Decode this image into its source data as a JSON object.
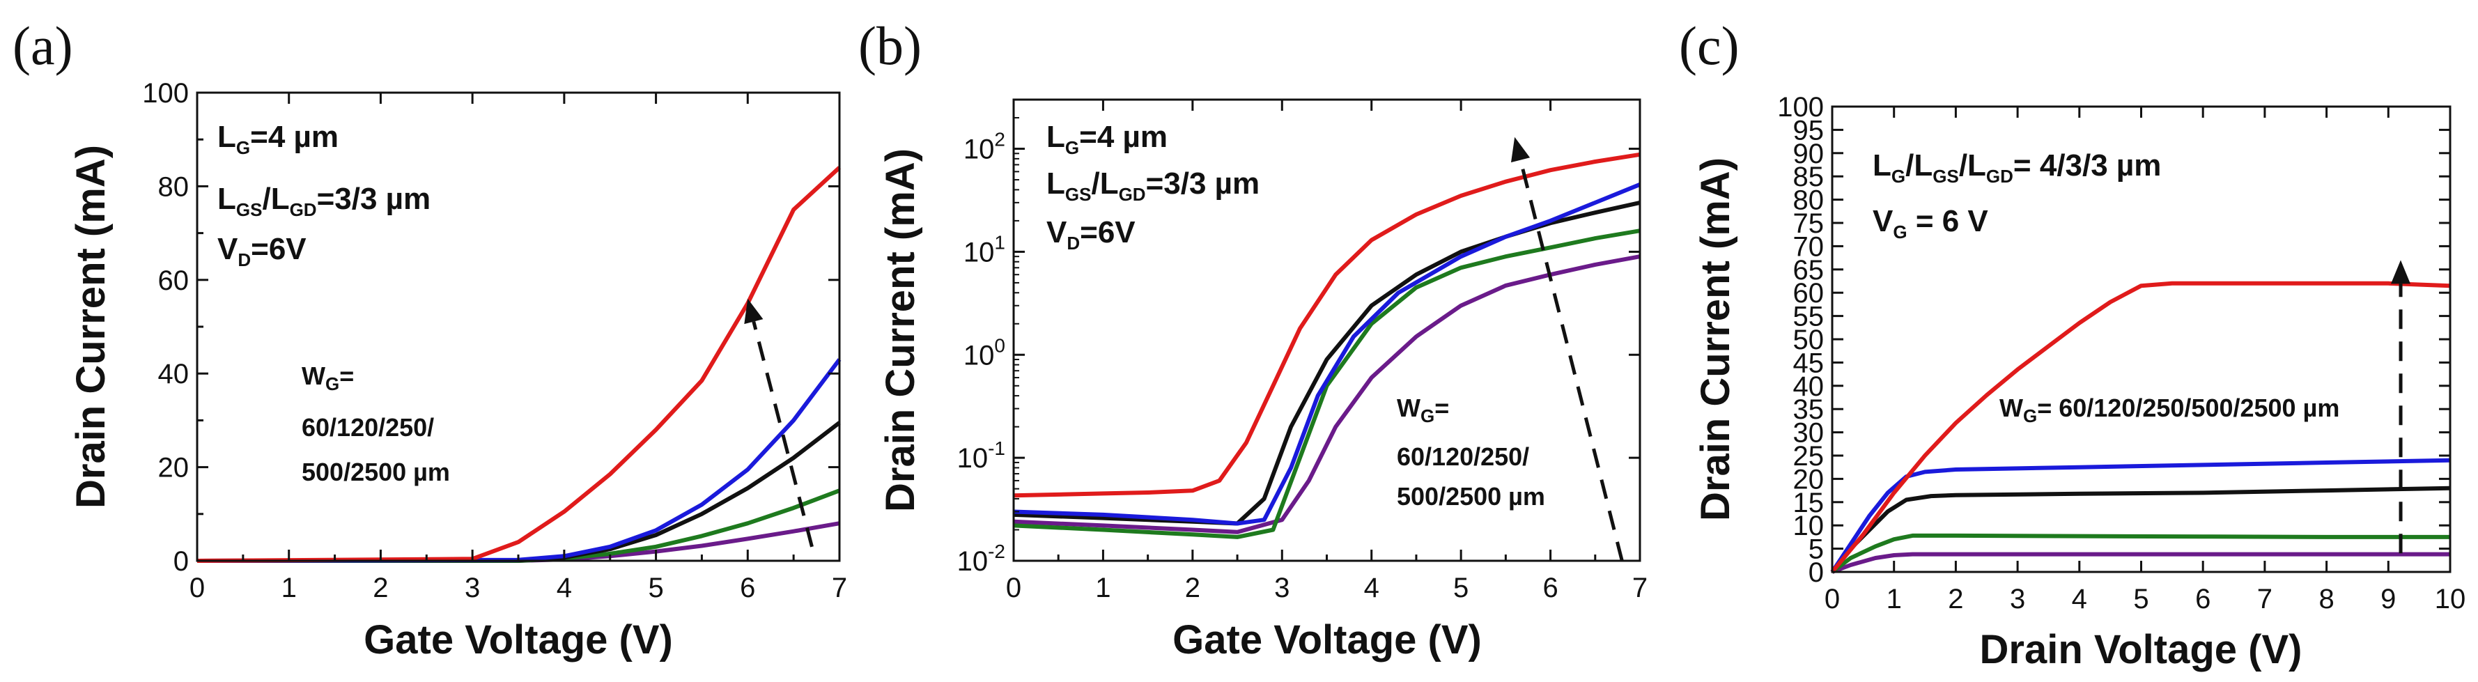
{
  "chart_data": [
    {
      "type": "line",
      "panel_label": "(a)",
      "xlabel": "Gate Voltage (V)",
      "ylabel": "Drain Current (mA)",
      "xlim": [
        0,
        7
      ],
      "ylim": [
        0,
        100
      ],
      "yscale": "linear",
      "x_ticks": [
        0,
        1,
        2,
        3,
        4,
        5,
        6,
        7
      ],
      "y_ticks": [
        0,
        20,
        40,
        60,
        80,
        100
      ],
      "annotations": {
        "lg": {
          "main": "L",
          "sub": "G",
          "rest": "=4 µm"
        },
        "lgs_lgd": {
          "parts": [
            "L",
            "GS",
            "/L",
            "GD",
            "=3/3 µm"
          ]
        },
        "vd": {
          "main": "V",
          "sub": "D",
          "rest": "=6V"
        },
        "wg_label": {
          "main": "W",
          "sub": "G",
          "rest": "="
        },
        "wg_line1": "60/120/250/",
        "wg_line2": "500/2500 µm"
      },
      "series": [
        {
          "name": "W_G=60 µm",
          "color": "#6a1b8a",
          "points": [
            [
              0,
              0
            ],
            [
              3.5,
              0
            ],
            [
              4,
              0.3
            ],
            [
              4.5,
              1
            ],
            [
              5,
              2
            ],
            [
              5.5,
              3.2
            ],
            [
              6,
              4.7
            ],
            [
              6.5,
              6.3
            ],
            [
              7,
              8
            ]
          ]
        },
        {
          "name": "W_G=120 µm",
          "color": "#1e7a1e",
          "points": [
            [
              0,
              0
            ],
            [
              3.5,
              0
            ],
            [
              4,
              0.5
            ],
            [
              4.5,
              1.5
            ],
            [
              5,
              3
            ],
            [
              5.5,
              5.3
            ],
            [
              6,
              8
            ],
            [
              6.5,
              11.3
            ],
            [
              7,
              15
            ]
          ]
        },
        {
          "name": "W_G=250 µm",
          "color": "#111111",
          "points": [
            [
              0,
              0
            ],
            [
              3.5,
              0.1
            ],
            [
              4,
              0.7
            ],
            [
              4.5,
              2.5
            ],
            [
              5,
              5.5
            ],
            [
              5.5,
              10
            ],
            [
              6,
              15.5
            ],
            [
              6.5,
              22
            ],
            [
              7,
              29.5
            ]
          ]
        },
        {
          "name": "W_G=500 µm",
          "color": "#1a1adb",
          "points": [
            [
              0,
              0
            ],
            [
              3.5,
              0.2
            ],
            [
              4,
              1
            ],
            [
              4.5,
              3
            ],
            [
              5,
              6.5
            ],
            [
              5.5,
              12
            ],
            [
              6,
              19.5
            ],
            [
              6.5,
              30
            ],
            [
              7,
              43
            ]
          ]
        },
        {
          "name": "W_G=2500 µm",
          "color": "#e01b1b",
          "points": [
            [
              0,
              0
            ],
            [
              3,
              0.4
            ],
            [
              3.5,
              4
            ],
            [
              4,
              10.5
            ],
            [
              4.5,
              18.5
            ],
            [
              5,
              28
            ],
            [
              5.5,
              38.5
            ],
            [
              6,
              55
            ],
            [
              6.5,
              75
            ],
            [
              7,
              84
            ]
          ]
        }
      ],
      "arrow": {
        "style": "dashed",
        "direction": "increasing W_G",
        "from": [
          6.7,
          3
        ],
        "to": [
          6.0,
          56
        ]
      }
    },
    {
      "type": "line",
      "panel_label": "(b)",
      "xlabel": "Gate Voltage (V)",
      "ylabel": "Drain Current (mA)",
      "xlim": [
        0,
        7
      ],
      "ylim": [
        0.01,
        300
      ],
      "yscale": "log",
      "x_ticks": [
        0,
        1,
        2,
        3,
        4,
        5,
        6,
        7
      ],
      "y_ticks": [
        {
          "value": 0.01,
          "base": "10",
          "exp": "-2"
        },
        {
          "value": 0.1,
          "base": "10",
          "exp": "-1"
        },
        {
          "value": 1,
          "base": "10",
          "exp": "0"
        },
        {
          "value": 10,
          "base": "10",
          "exp": "1"
        },
        {
          "value": 100,
          "base": "10",
          "exp": "2"
        }
      ],
      "annotations": {
        "lg": {
          "main": "L",
          "sub": "G",
          "rest": "=4 µm"
        },
        "lgs_lgd": {
          "parts": [
            "L",
            "GS",
            "/L",
            "GD",
            "=3/3 µm"
          ]
        },
        "vd": {
          "main": "V",
          "sub": "D",
          "rest": "=6V"
        },
        "wg_label": {
          "main": "W",
          "sub": "G",
          "rest": "="
        },
        "wg_line1": "60/120/250/",
        "wg_line2": "500/2500 µm"
      },
      "series": [
        {
          "name": "W_G=60 µm",
          "color": "#6a1b8a",
          "points": [
            [
              0,
              0.024
            ],
            [
              1,
              0.022
            ],
            [
              2,
              0.02
            ],
            [
              2.5,
              0.019
            ],
            [
              3,
              0.025
            ],
            [
              3.3,
              0.06
            ],
            [
              3.6,
              0.2
            ],
            [
              4,
              0.6
            ],
            [
              4.5,
              1.5
            ],
            [
              5,
              3
            ],
            [
              5.5,
              4.7
            ],
            [
              6,
              6
            ],
            [
              6.5,
              7.5
            ],
            [
              7,
              9
            ]
          ]
        },
        {
          "name": "W_G=120 µm",
          "color": "#1e7a1e",
          "points": [
            [
              0,
              0.022
            ],
            [
              1,
              0.02
            ],
            [
              2,
              0.018
            ],
            [
              2.5,
              0.017
            ],
            [
              2.9,
              0.02
            ],
            [
              3.2,
              0.1
            ],
            [
              3.5,
              0.5
            ],
            [
              4,
              2
            ],
            [
              4.5,
              4.5
            ],
            [
              5,
              7
            ],
            [
              5.5,
              9
            ],
            [
              6,
              11
            ],
            [
              6.5,
              13.5
            ],
            [
              7,
              16
            ]
          ]
        },
        {
          "name": "W_G=250 µm",
          "color": "#111111",
          "points": [
            [
              0,
              0.028
            ],
            [
              1,
              0.026
            ],
            [
              2,
              0.024
            ],
            [
              2.5,
              0.023
            ],
            [
              2.8,
              0.04
            ],
            [
              3.1,
              0.2
            ],
            [
              3.5,
              0.9
            ],
            [
              4,
              3
            ],
            [
              4.5,
              6
            ],
            [
              5,
              10
            ],
            [
              5.5,
              14
            ],
            [
              6,
              19
            ],
            [
              6.5,
              24
            ],
            [
              7,
              30
            ]
          ]
        },
        {
          "name": "W_G=500 µm",
          "color": "#1a1adb",
          "points": [
            [
              0,
              0.03
            ],
            [
              1,
              0.028
            ],
            [
              2,
              0.025
            ],
            [
              2.5,
              0.023
            ],
            [
              2.8,
              0.025
            ],
            [
              3.1,
              0.08
            ],
            [
              3.4,
              0.4
            ],
            [
              3.8,
              1.5
            ],
            [
              4.3,
              4
            ],
            [
              5,
              9
            ],
            [
              5.5,
              14
            ],
            [
              6,
              20
            ],
            [
              6.5,
              30
            ],
            [
              7,
              45
            ]
          ]
        },
        {
          "name": "W_G=2500 µm",
          "color": "#e01b1b",
          "points": [
            [
              0,
              0.043
            ],
            [
              1,
              0.045
            ],
            [
              1.5,
              0.046
            ],
            [
              2,
              0.048
            ],
            [
              2.3,
              0.06
            ],
            [
              2.6,
              0.14
            ],
            [
              2.9,
              0.5
            ],
            [
              3.2,
              1.8
            ],
            [
              3.6,
              6
            ],
            [
              4,
              13
            ],
            [
              4.5,
              23
            ],
            [
              5,
              35
            ],
            [
              5.5,
              48
            ],
            [
              6,
              62
            ],
            [
              6.5,
              75
            ],
            [
              7,
              88
            ]
          ]
        }
      ],
      "arrow": {
        "style": "dashed",
        "direction": "increasing W_G",
        "from": [
          6.8,
          0.01
        ],
        "to": [
          5.6,
          130
        ]
      }
    },
    {
      "type": "line",
      "panel_label": "(c)",
      "xlabel": "Drain Voltage (V)",
      "ylabel": "Drain Current (mA)",
      "xlim": [
        0,
        10
      ],
      "ylim": [
        0,
        100
      ],
      "yscale": "linear",
      "x_ticks": [
        0,
        1,
        2,
        3,
        4,
        5,
        6,
        7,
        8,
        9,
        10
      ],
      "y_ticks": [
        0,
        5,
        10,
        15,
        20,
        25,
        30,
        35,
        40,
        45,
        50,
        55,
        60,
        65,
        70,
        75,
        80,
        85,
        90,
        95,
        100
      ],
      "annotations": {
        "l_ratio": {
          "parts": [
            "L",
            "G",
            "/L",
            "GS",
            "/L",
            "GD",
            "= 4/3/3 µm"
          ]
        },
        "vg": {
          "main": "V",
          "sub": "G",
          "rest": " = 6 V"
        },
        "wg_line": {
          "main": "W",
          "sub": "G",
          "rest": "= 60/120/250/500/2500 µm"
        }
      },
      "series": [
        {
          "name": "W_G=60 µm",
          "color": "#6a1b8a",
          "points": [
            [
              0,
              0
            ],
            [
              0.3,
              1.5
            ],
            [
              0.7,
              3
            ],
            [
              1,
              3.6
            ],
            [
              1.3,
              3.8
            ],
            [
              2,
              3.8
            ],
            [
              4,
              3.8
            ],
            [
              6,
              3.8
            ],
            [
              8,
              3.8
            ],
            [
              10,
              3.8
            ]
          ]
        },
        {
          "name": "W_G=120 µm",
          "color": "#1e7a1e",
          "points": [
            [
              0,
              0
            ],
            [
              0.3,
              3
            ],
            [
              0.7,
              5.5
            ],
            [
              1,
              7
            ],
            [
              1.3,
              7.8
            ],
            [
              2,
              7.8
            ],
            [
              4,
              7.7
            ],
            [
              6,
              7.6
            ],
            [
              8,
              7.5
            ],
            [
              10,
              7.5
            ]
          ]
        },
        {
          "name": "W_G=250 µm",
          "color": "#111111",
          "points": [
            [
              0,
              0
            ],
            [
              0.3,
              5
            ],
            [
              0.6,
              9
            ],
            [
              0.9,
              13
            ],
            [
              1.2,
              15.5
            ],
            [
              1.6,
              16.3
            ],
            [
              2,
              16.5
            ],
            [
              4,
              16.8
            ],
            [
              6,
              17
            ],
            [
              8,
              17.5
            ],
            [
              10,
              18
            ]
          ]
        },
        {
          "name": "W_G=500 µm",
          "color": "#1a1adb",
          "points": [
            [
              0,
              0
            ],
            [
              0.3,
              6
            ],
            [
              0.6,
              12
            ],
            [
              0.9,
              17
            ],
            [
              1.2,
              20.5
            ],
            [
              1.5,
              21.5
            ],
            [
              2,
              22
            ],
            [
              4,
              22.5
            ],
            [
              6,
              23
            ],
            [
              8,
              23.5
            ],
            [
              10,
              24
            ]
          ]
        },
        {
          "name": "W_G=2500 µm",
          "color": "#e01b1b",
          "points": [
            [
              0,
              0
            ],
            [
              0.5,
              8
            ],
            [
              1,
              17
            ],
            [
              1.5,
              25
            ],
            [
              2,
              32
            ],
            [
              2.5,
              38
            ],
            [
              3,
              43.5
            ],
            [
              3.5,
              48.5
            ],
            [
              4,
              53.5
            ],
            [
              4.5,
              58
            ],
            [
              5,
              61.5
            ],
            [
              5.5,
              62
            ],
            [
              7,
              62
            ],
            [
              9,
              62
            ],
            [
              10,
              61.5
            ]
          ]
        }
      ],
      "arrow": {
        "style": "dashed",
        "direction": "increasing W_G",
        "from": [
          9.2,
          4
        ],
        "to": [
          9.2,
          67
        ]
      }
    }
  ]
}
